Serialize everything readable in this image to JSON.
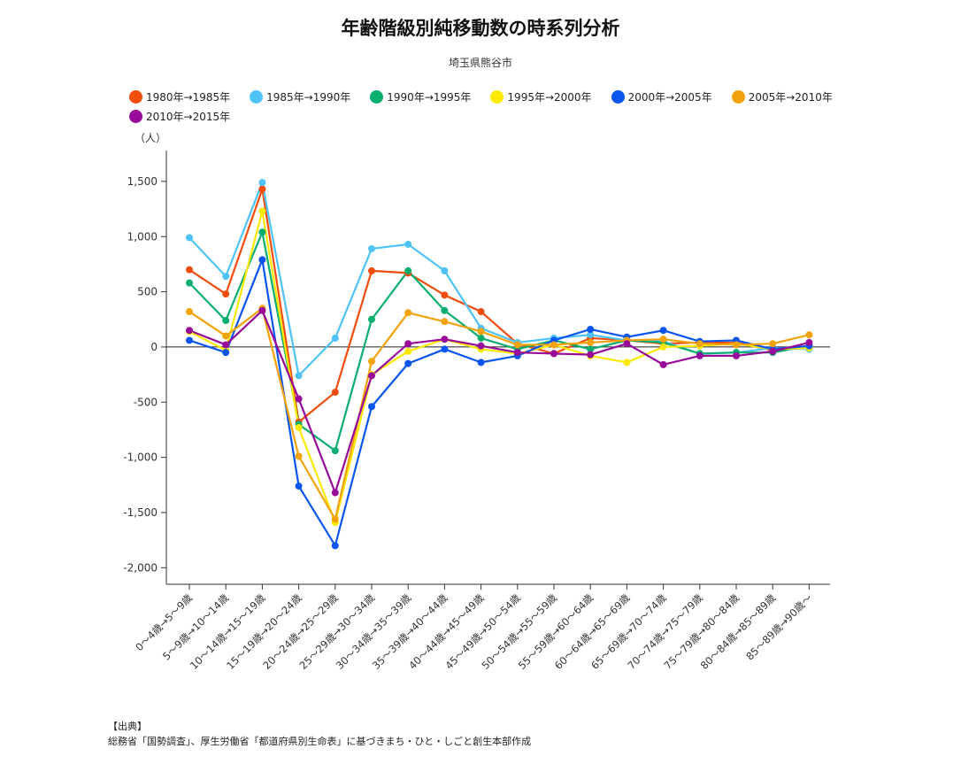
{
  "chart_data": {
    "type": "line",
    "title": "年齢階級別純移動数の時系列分析",
    "subtitle": "埼玉県熊谷市",
    "ylabel": "（人）",
    "xlabel": "",
    "ylim": [
      -2150,
      1780
    ],
    "yticks": [
      1500,
      1000,
      500,
      0,
      -500,
      -1000,
      -1500,
      -2000
    ],
    "ytick_labels": [
      "1,500",
      "1,000",
      "500",
      "0",
      "-500",
      "-1,000",
      "-1,500",
      "-2,000"
    ],
    "grid": false,
    "legend_position": "top-left",
    "categories": [
      "0～4歳→5～9歳",
      "5～9歳→10～14歳",
      "10～14歳→15～19歳",
      "15～19歳→20～24歳",
      "20～24歳→25～29歳",
      "25～29歳→30～34歳",
      "30～34歳→35～39歳",
      "35～39歳→40～44歳",
      "40～44歳→45～49歳",
      "45～49歳→50～54歳",
      "50～54歳→55～59歳",
      "55～59歳→60～64歳",
      "60～64歳→65～69歳",
      "65～69歳→70～74歳",
      "70～74歳→75～79歳",
      "75～79歳→80～84歳",
      "80～84歳→85～89歳",
      "85～89歳→90歳～"
    ],
    "series": [
      {
        "name": "1980年→1985年",
        "color": "#f24d0c",
        "values": [
          700,
          480,
          1430,
          -680,
          -410,
          690,
          670,
          470,
          320,
          30,
          -60,
          80,
          60,
          30,
          40,
          40,
          -30,
          10
        ]
      },
      {
        "name": "1985年→1990年",
        "color": "#4fc3f7",
        "values": [
          990,
          640,
          1490,
          -260,
          80,
          890,
          930,
          690,
          170,
          40,
          80,
          110,
          60,
          50,
          -60,
          -50,
          -10,
          -20
        ]
      },
      {
        "name": "1990年→1995年",
        "color": "#0aae6e",
        "values": [
          580,
          240,
          1040,
          -700,
          -940,
          250,
          690,
          330,
          80,
          -20,
          60,
          -20,
          60,
          40,
          -60,
          -50,
          -50,
          10
        ]
      },
      {
        "name": "1995年→2000年",
        "color": "#fbe900",
        "values": [
          140,
          -30,
          1230,
          -730,
          -1590,
          -250,
          -40,
          70,
          -20,
          -60,
          20,
          -80,
          -140,
          0,
          10,
          30,
          -20,
          -10
        ]
      },
      {
        "name": "2000年→2005年",
        "color": "#0a55f0",
        "values": [
          60,
          -50,
          790,
          -1260,
          -1800,
          -540,
          -150,
          -20,
          -140,
          -80,
          60,
          160,
          90,
          150,
          50,
          60,
          -20,
          10
        ]
      },
      {
        "name": "2005年→2010年",
        "color": "#f2a20a",
        "values": [
          320,
          100,
          350,
          -990,
          -1560,
          -130,
          310,
          230,
          140,
          20,
          20,
          40,
          60,
          70,
          30,
          20,
          30,
          110
        ]
      },
      {
        "name": "2010年→2015年",
        "color": "#970a9a",
        "values": [
          150,
          20,
          330,
          -470,
          -1320,
          -260,
          30,
          70,
          10,
          -50,
          -60,
          -70,
          30,
          -160,
          -80,
          -80,
          -40,
          40
        ]
      }
    ]
  },
  "source": {
    "heading": "【出典】",
    "text": "総務省「国勢調査」、厚生労働省「都道府県別生命表」に基づきまち・ひと・しごと創生本部作成"
  }
}
